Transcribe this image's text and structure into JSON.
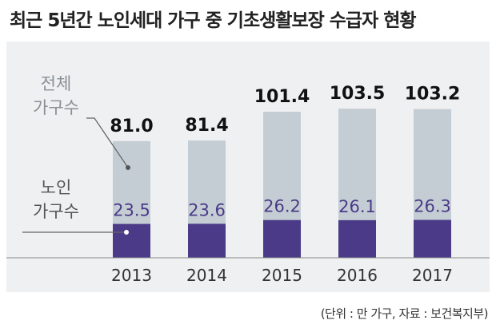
{
  "header": {
    "title": "최근 5년간 노인세대 가구 중 기초생활보장 수급자 현황"
  },
  "footer": {
    "source": "(단위 : 만 가구, 자료 : 보건복지부)"
  },
  "chart_data": {
    "type": "bar",
    "categories": [
      "2013",
      "2014",
      "2015",
      "2016",
      "2017"
    ],
    "series": [
      {
        "name": "전체 가구수",
        "values": [
          81.0,
          81.4,
          101.4,
          103.5,
          103.2
        ]
      },
      {
        "name": "노인 가구수",
        "values": [
          23.5,
          23.6,
          26.2,
          26.1,
          26.3
        ]
      }
    ],
    "labels": {
      "total": [
        "81.0",
        "81.4",
        "101.4",
        "103.5",
        "103.2"
      ],
      "elderly": [
        "23.5",
        "23.6",
        "26.2",
        "26.1",
        "26.3"
      ]
    },
    "legend": {
      "total_line1": "전체",
      "total_line2": "가구수",
      "elderly_line1": "노인",
      "elderly_line2": "가구수"
    },
    "colors": {
      "total": "#c5cdd4",
      "elderly": "#4a3a87",
      "elderly_label": "#4a3a87",
      "background": "#eef0f2"
    },
    "overlapping_bars": true,
    "grid": false
  }
}
